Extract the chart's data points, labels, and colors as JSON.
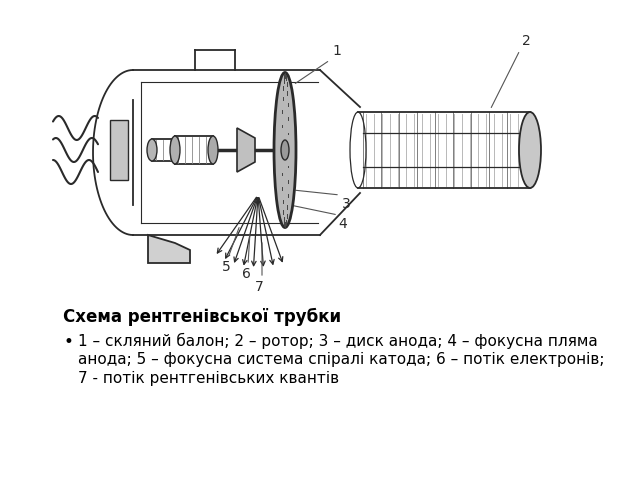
{
  "title": "Схема рентгенівської трубки",
  "bullet_text": "1 – скляний балон; 2 – ротор; 3 – диск анода; 4 – фокусна пляма\nанода; 5 – фокусна система спіралі катода; 6 – потік електронів;\n7 - потік рентгенівських квантів",
  "bg_color": "#ffffff",
  "text_color": "#000000",
  "title_fontsize": 12,
  "body_fontsize": 11,
  "fig_width": 6.4,
  "fig_height": 4.8
}
